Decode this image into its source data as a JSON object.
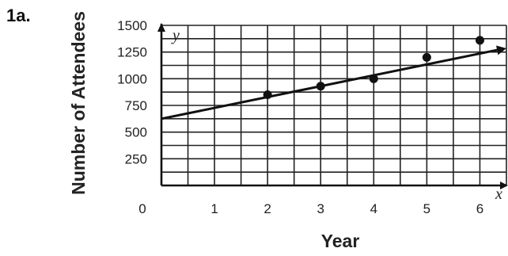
{
  "problem_label": "1a.",
  "chart_data": {
    "type": "scatter",
    "xlabel": "Year",
    "ylabel": "Number of Attendees",
    "x_axis_var": "x",
    "y_axis_var": "y",
    "origin_label": "0",
    "xlim": [
      0,
      6.5
    ],
    "ylim": [
      0,
      1500
    ],
    "x_ticks": [
      1,
      2,
      3,
      4,
      5,
      6
    ],
    "y_ticks": [
      250,
      500,
      750,
      1000,
      1250,
      1500
    ],
    "grid": true,
    "points": [
      {
        "x": 2,
        "y": 850
      },
      {
        "x": 3,
        "y": 930
      },
      {
        "x": 4,
        "y": 1000
      },
      {
        "x": 5,
        "y": 1200
      },
      {
        "x": 6,
        "y": 1360
      }
    ],
    "trend_line": {
      "x": [
        0,
        6.5
      ],
      "y": [
        625,
        1285
      ]
    }
  }
}
